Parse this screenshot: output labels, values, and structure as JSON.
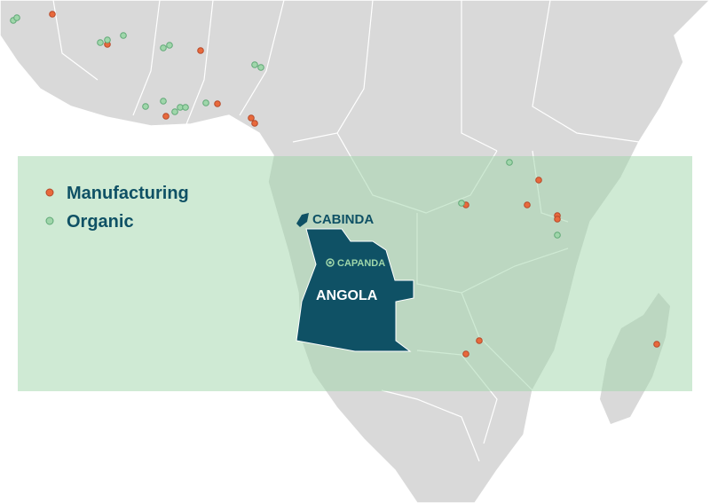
{
  "legend": {
    "items": [
      {
        "label": "Manufacturing",
        "color": "#e8693c"
      },
      {
        "label": "Organic",
        "color": "#9fd6aa"
      }
    ]
  },
  "labels": {
    "cabinda": "CABINDA",
    "angola": "ANGOLA",
    "capanda": "CAPANDA"
  }
}
